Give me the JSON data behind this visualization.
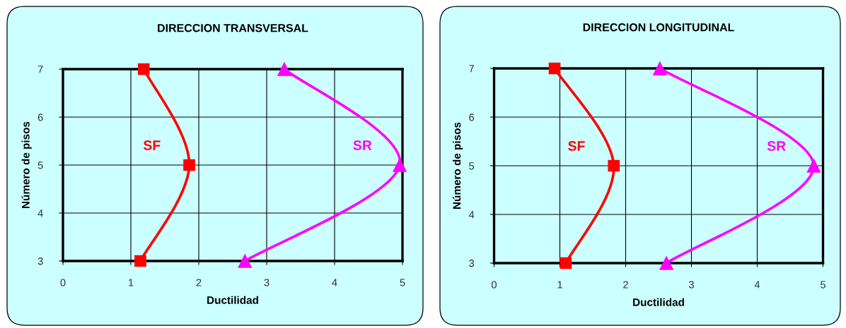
{
  "chart_data": [
    {
      "type": "line",
      "title": "DIRECCION TRANSVERSAL",
      "xlabel": "Ductilidad",
      "ylabel": "Número de pisos",
      "xlim": [
        0,
        5
      ],
      "ylim": [
        3,
        7
      ],
      "xticks": [
        0,
        1,
        2,
        3,
        4,
        5
      ],
      "yticks": [
        3,
        4,
        5,
        6,
        7
      ],
      "grid": true,
      "series": [
        {
          "name": "SF",
          "color": "#ff0000",
          "marker": "square",
          "x": [
            1.14,
            1.86,
            1.19
          ],
          "values": [
            3,
            5,
            7
          ]
        },
        {
          "name": "SR",
          "color": "#ff00ff",
          "marker": "triangle",
          "x": [
            2.68,
            4.96,
            3.26
          ],
          "values": [
            3,
            5,
            7
          ]
        }
      ]
    },
    {
      "type": "line",
      "title": "DIRECCION LONGITUDINAL",
      "xlabel": "Ductilidad",
      "ylabel": "Número de pisos",
      "xlim": [
        0,
        5
      ],
      "ylim": [
        3,
        7
      ],
      "xticks": [
        0,
        1,
        2,
        3,
        4,
        5
      ],
      "yticks": [
        3,
        4,
        5,
        6,
        7
      ],
      "grid": true,
      "series": [
        {
          "name": "SF",
          "color": "#ff0000",
          "marker": "square",
          "x": [
            1.09,
            1.82,
            0.92
          ],
          "values": [
            3,
            5,
            7
          ]
        },
        {
          "name": "SR",
          "color": "#ff00ff",
          "marker": "triangle",
          "x": [
            2.62,
            4.86,
            2.52
          ],
          "values": [
            3,
            5,
            7
          ]
        }
      ]
    }
  ]
}
